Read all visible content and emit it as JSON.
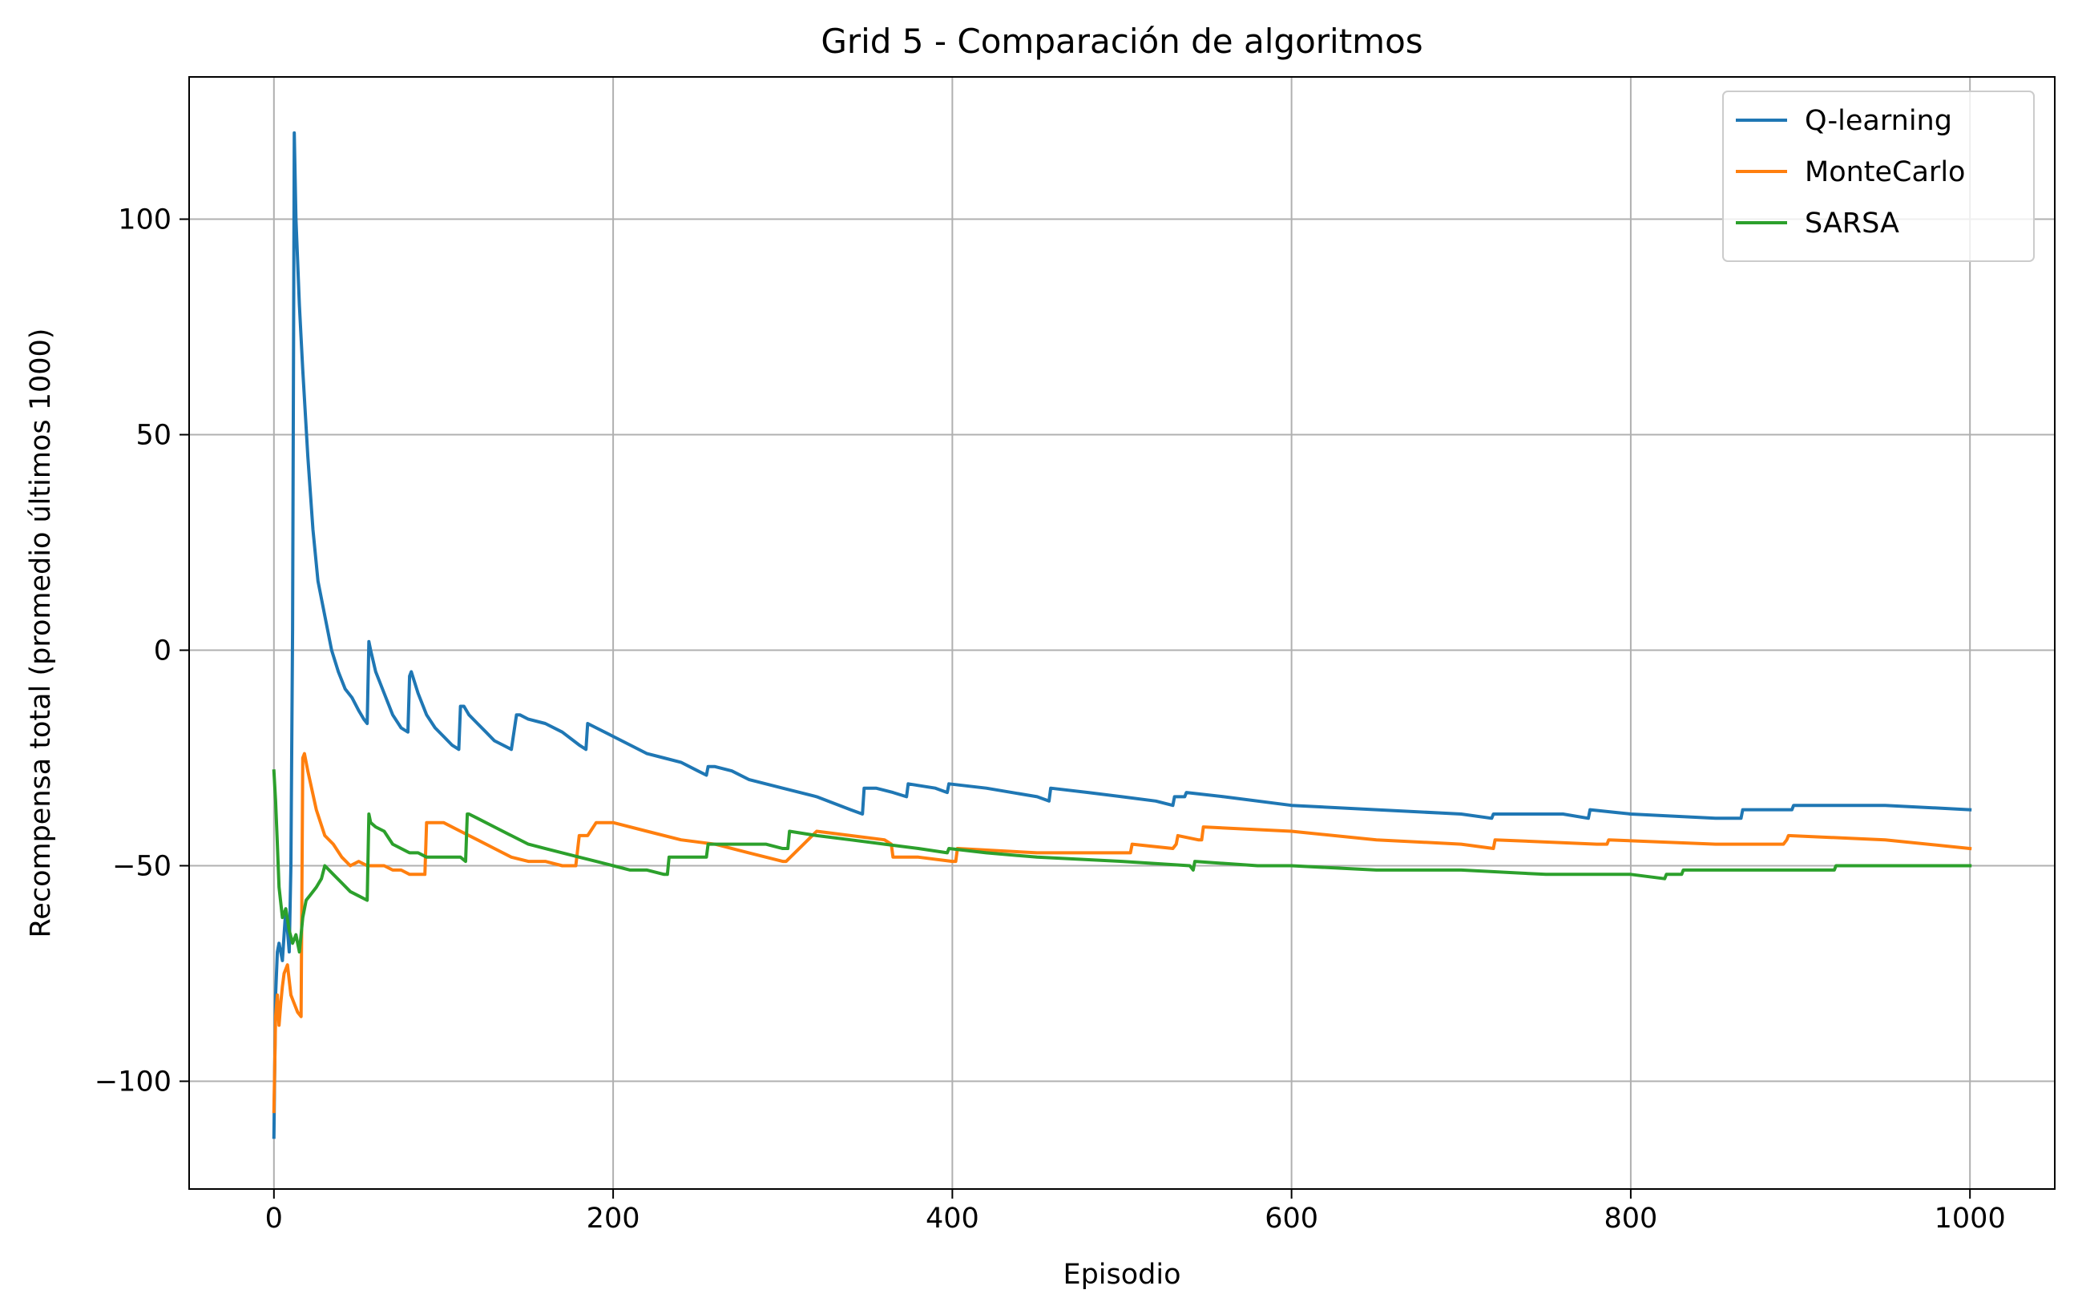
{
  "chart_data": {
    "type": "line",
    "title": "Grid 5 - Comparación de algoritmos",
    "xlabel": "Episodio",
    "ylabel": "Recompensa total (promedio últimos 1000)",
    "xlim": [
      -50,
      1050
    ],
    "ylim": [
      -125,
      133
    ],
    "xticks": [
      0,
      200,
      400,
      600,
      800,
      1000
    ],
    "yticks": [
      -100,
      -50,
      0,
      50,
      100
    ],
    "xtick_labels": [
      "0",
      "200",
      "400",
      "600",
      "800",
      "1000"
    ],
    "ytick_labels": [
      "−100",
      "−50",
      "0",
      "50",
      "100"
    ],
    "grid": true,
    "legend_position": "top-right",
    "series": [
      {
        "name": "Q-learning",
        "color": "#1f77b4",
        "x": [
          0,
          1,
          2,
          3,
          5,
          7,
          9,
          10,
          11,
          12,
          13,
          15,
          17,
          20,
          23,
          26,
          30,
          34,
          38,
          42,
          46,
          50,
          53,
          55,
          56,
          57,
          60,
          65,
          70,
          75,
          79,
          80,
          81,
          85,
          90,
          95,
          100,
          105,
          109,
          110,
          112,
          115,
          120,
          125,
          130,
          135,
          140,
          143,
          145,
          150,
          160,
          170,
          180,
          184,
          185,
          190,
          200,
          210,
          220,
          230,
          240,
          250,
          255,
          256,
          260,
          270,
          280,
          300,
          320,
          340,
          347,
          348,
          355,
          365,
          373,
          374,
          390,
          397,
          398,
          420,
          450,
          457,
          458,
          480,
          500,
          520,
          530,
          531,
          537,
          538,
          560,
          600,
          650,
          700,
          718,
          719,
          760,
          775,
          776,
          800,
          850,
          865,
          866,
          880,
          895,
          896,
          920,
          950,
          1000
        ],
        "y": [
          -113,
          -80,
          -70,
          -68,
          -72,
          -60,
          -70,
          -50,
          5,
          120,
          100,
          80,
          65,
          45,
          28,
          16,
          8,
          0,
          -5,
          -9,
          -11,
          -14,
          -16,
          -17,
          2,
          0,
          -5,
          -10,
          -15,
          -18,
          -19,
          -6,
          -5,
          -10,
          -15,
          -18,
          -20,
          -22,
          -23,
          -13,
          -13,
          -15,
          -17,
          -19,
          -21,
          -22,
          -23,
          -15,
          -15,
          -16,
          -17,
          -19,
          -22,
          -23,
          -17,
          -18,
          -20,
          -22,
          -24,
          -25,
          -26,
          -28,
          -29,
          -27,
          -27,
          -28,
          -30,
          -32,
          -34,
          -37,
          -38,
          -32,
          -32,
          -33,
          -34,
          -31,
          -32,
          -33,
          -31,
          -32,
          -34,
          -35,
          -32,
          -33,
          -34,
          -35,
          -36,
          -34,
          -34,
          -33,
          -34,
          -36,
          -37,
          -38,
          -39,
          -38,
          -38,
          -39,
          -37,
          -38,
          -39,
          -39,
          -37,
          -37,
          -37,
          -36,
          -36,
          -36,
          -37
        ]
      },
      {
        "name": "MonteCarlo",
        "color": "#ff7f0e",
        "x": [
          0,
          1,
          2,
          3,
          4,
          5,
          6,
          8,
          10,
          12,
          14,
          16,
          17,
          18,
          20,
          25,
          30,
          35,
          40,
          45,
          50,
          55,
          60,
          65,
          70,
          75,
          80,
          85,
          89,
          90,
          95,
          100,
          110,
          120,
          130,
          140,
          150,
          160,
          170,
          178,
          180,
          185,
          190,
          200,
          220,
          240,
          260,
          280,
          300,
          302,
          320,
          340,
          360,
          364,
          365,
          380,
          400,
          402,
          403,
          450,
          451,
          500,
          505,
          506,
          530,
          532,
          533,
          545,
          547,
          548,
          600,
          650,
          700,
          719,
          720,
          780,
          786,
          787,
          850,
          890,
          892,
          893,
          950,
          1000
        ],
        "y": [
          -107,
          -85,
          -80,
          -87,
          -82,
          -78,
          -75,
          -73,
          -80,
          -82,
          -84,
          -85,
          -25,
          -24,
          -28,
          -37,
          -43,
          -45,
          -48,
          -50,
          -49,
          -50,
          -50,
          -50,
          -51,
          -51,
          -52,
          -52,
          -52,
          -40,
          -40,
          -40,
          -42,
          -44,
          -46,
          -48,
          -49,
          -49,
          -50,
          -50,
          -43,
          -43,
          -40,
          -40,
          -42,
          -44,
          -45,
          -47,
          -49,
          -49,
          -42,
          -43,
          -44,
          -45,
          -48,
          -48,
          -49,
          -49,
          -46,
          -47,
          -47,
          -47,
          -47,
          -45,
          -46,
          -45,
          -43,
          -44,
          -44,
          -41,
          -42,
          -44,
          -45,
          -46,
          -44,
          -45,
          -45,
          -44,
          -45,
          -45,
          -44,
          -43,
          -44,
          -46
        ]
      },
      {
        "name": "SARSA",
        "color": "#2ca02c",
        "x": [
          0,
          1,
          2,
          3,
          5,
          7,
          9,
          11,
          13,
          15,
          17,
          19,
          21,
          25,
          28,
          30,
          35,
          40,
          45,
          50,
          55,
          56,
          57,
          60,
          65,
          70,
          75,
          80,
          85,
          90,
          95,
          100,
          105,
          110,
          113,
          114,
          115,
          120,
          130,
          140,
          150,
          160,
          170,
          180,
          190,
          200,
          210,
          220,
          230,
          232,
          233,
          240,
          250,
          255,
          256,
          270,
          280,
          290,
          300,
          303,
          304,
          320,
          340,
          360,
          380,
          397,
          398,
          420,
          450,
          500,
          540,
          542,
          543,
          580,
          600,
          650,
          651,
          700,
          750,
          800,
          820,
          821,
          830,
          831,
          900,
          920,
          921,
          1000
        ],
        "y": [
          -28,
          -35,
          -45,
          -55,
          -62,
          -60,
          -65,
          -68,
          -66,
          -70,
          -62,
          -58,
          -57,
          -55,
          -53,
          -50,
          -52,
          -54,
          -56,
          -57,
          -58,
          -38,
          -40,
          -41,
          -42,
          -45,
          -46,
          -47,
          -47,
          -48,
          -48,
          -48,
          -48,
          -48,
          -49,
          -38,
          -38,
          -39,
          -41,
          -43,
          -45,
          -46,
          -47,
          -48,
          -49,
          -50,
          -51,
          -51,
          -52,
          -52,
          -48,
          -48,
          -48,
          -48,
          -45,
          -45,
          -45,
          -45,
          -46,
          -46,
          -42,
          -43,
          -44,
          -45,
          -46,
          -47,
          -46,
          -47,
          -48,
          -49,
          -50,
          -51,
          -49,
          -50,
          -50,
          -51,
          -51,
          -51,
          -52,
          -52,
          -53,
          -52,
          -52,
          -51,
          -51,
          -51,
          -50,
          -50
        ]
      }
    ]
  }
}
